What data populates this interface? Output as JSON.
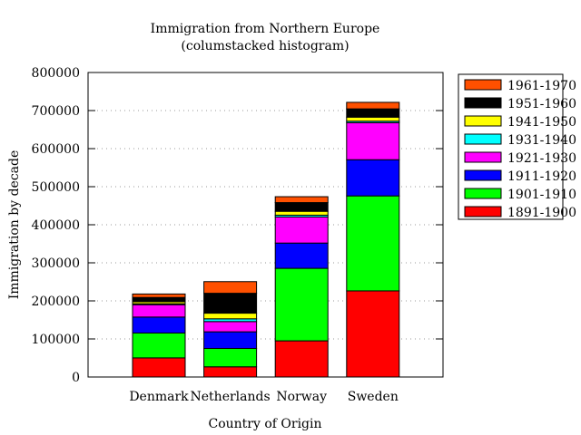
{
  "chart_data": {
    "type": "bar",
    "stacked": true,
    "title": "Immigration from Northern Europe",
    "subtitle": "(columstacked histogram)",
    "xlabel": "Country of Origin",
    "ylabel": "Immigration by decade",
    "ylim": [
      0,
      800000
    ],
    "yticks": [
      0,
      100000,
      200000,
      300000,
      400000,
      500000,
      600000,
      700000,
      800000
    ],
    "grid": true,
    "legend_position": "outside-right-top",
    "categories": [
      "Denmark",
      "Netherlands",
      "Norway",
      "Sweden"
    ],
    "series": [
      {
        "name": "1891-1900",
        "color": "#ff0000",
        "values": [
          50231,
          26758,
          95015,
          226266
        ]
      },
      {
        "name": "1901-1910",
        "color": "#00ff00",
        "values": [
          65285,
          48262,
          190505,
          249534
        ]
      },
      {
        "name": "1911-1920",
        "color": "#0000ff",
        "values": [
          41983,
          43718,
          66395,
          95074
        ]
      },
      {
        "name": "1921-1930",
        "color": "#ff00ff",
        "values": [
          32430,
          26948,
          68531,
          97249
        ]
      },
      {
        "name": "1931-1940",
        "color": "#00ffff",
        "values": [
          2559,
          7150,
          4740,
          3960
        ]
      },
      {
        "name": "1941-1950",
        "color": "#ffff00",
        "values": [
          5393,
          14860,
          10100,
          10665
        ]
      },
      {
        "name": "1951-1960",
        "color": "#000000",
        "values": [
          10984,
          52277,
          22935,
          21697
        ]
      },
      {
        "name": "1961-1970",
        "color": "#ff5000",
        "values": [
          9201,
          30606,
          15484,
          17116
        ]
      }
    ]
  }
}
